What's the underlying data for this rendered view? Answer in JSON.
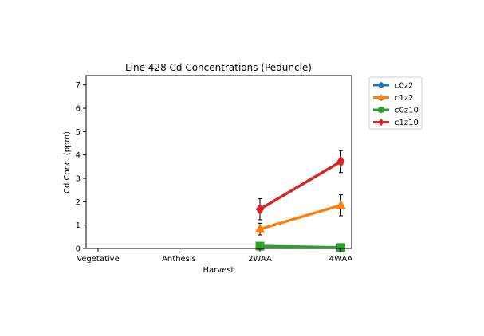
{
  "chart_data": {
    "type": "line",
    "title": "Line 428 Cd Concentrations (Peduncle)",
    "xlabel": "Harvest",
    "ylabel": "Cd Conc. (ppm)",
    "categories": [
      "Vegetative",
      "Anthesis",
      "2WAA",
      "4WAA"
    ],
    "ylim": [
      0,
      7.4
    ],
    "yticks": [
      0,
      1,
      2,
      3,
      4,
      5,
      6,
      7
    ],
    "grid": false,
    "legend_position": "outside-top-right",
    "series": [
      {
        "name": "c0z2",
        "color": "#1f77b4",
        "marker": "circle",
        "values": [
          null,
          null,
          null,
          null
        ],
        "errors": [
          null,
          null,
          null,
          null
        ]
      },
      {
        "name": "c1z2",
        "color": "#ff7f0e",
        "marker": "triangle",
        "values": [
          null,
          null,
          0.83,
          1.85
        ],
        "errors": [
          null,
          null,
          0.25,
          0.45
        ]
      },
      {
        "name": "c0z10",
        "color": "#2ca02c",
        "marker": "square",
        "values": [
          null,
          null,
          0.1,
          0.04
        ],
        "errors": [
          null,
          null,
          0.03,
          0.02
        ]
      },
      {
        "name": "c1z10",
        "color": "#d62728",
        "marker": "diamond",
        "values": [
          null,
          null,
          1.68,
          3.72
        ],
        "errors": [
          null,
          null,
          0.45,
          0.47
        ]
      }
    ]
  }
}
